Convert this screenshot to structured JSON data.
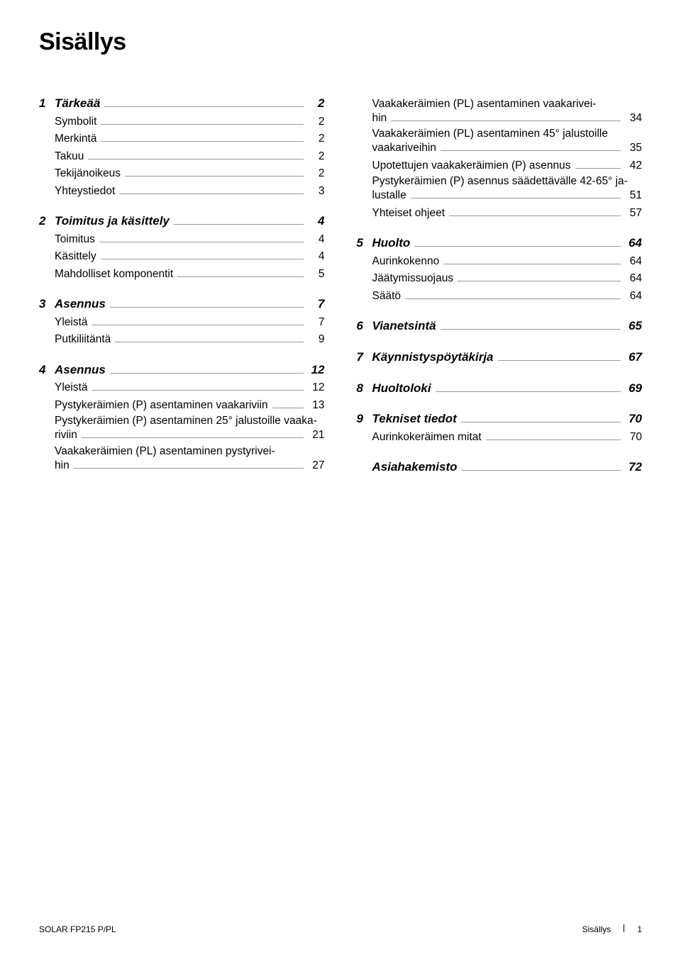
{
  "title": "Sisällys",
  "left": [
    {
      "type": "section",
      "num": "1",
      "label": "Tärkeää",
      "page": "2"
    },
    {
      "type": "sub",
      "label": "Symbolit",
      "page": "2"
    },
    {
      "type": "sub",
      "label": "Merkintä",
      "page": "2"
    },
    {
      "type": "sub",
      "label": "Takuu",
      "page": "2"
    },
    {
      "type": "sub",
      "label": "Tekijänoikeus",
      "page": "2"
    },
    {
      "type": "sub",
      "label": "Yhteystiedot",
      "page": "3"
    },
    {
      "type": "section",
      "num": "2",
      "label": "Toimitus ja käsittely",
      "page": "4"
    },
    {
      "type": "sub",
      "label": "Toimitus",
      "page": "4"
    },
    {
      "type": "sub",
      "label": "Käsittely",
      "page": "4"
    },
    {
      "type": "sub",
      "label": "Mahdolliset komponentit",
      "page": "5"
    },
    {
      "type": "section",
      "num": "3",
      "label": "Asennus",
      "page": "7"
    },
    {
      "type": "sub",
      "label": "Yleistä",
      "page": "7"
    },
    {
      "type": "sub",
      "label": "Putkiliitäntä",
      "page": "9"
    },
    {
      "type": "section",
      "num": "4",
      "label": "Asennus",
      "page": "12"
    },
    {
      "type": "sub",
      "label": "Yleistä",
      "page": "12"
    },
    {
      "type": "sub",
      "label": "Pystykeräimien (P) asentaminen vaakariviin",
      "page": "13"
    },
    {
      "type": "sub-wrap",
      "line1": "Pystykeräimien (P) asentaminen 25° jalustoille vaaka-",
      "line2": "riviin",
      "page": "21"
    },
    {
      "type": "sub-wrap",
      "line1": "Vaakakeräimien (PL) asentaminen pystyrivei-",
      "line2": "hin",
      "page": "27"
    }
  ],
  "right": [
    {
      "type": "sub-wrap",
      "line1": "Vaakakeräimien (PL) asentaminen vaakarivei-",
      "line2": "hin",
      "page": "34"
    },
    {
      "type": "sub-wrap",
      "line1": "Vaakakeräimien (PL) asentaminen 45° jalustoille",
      "line2": "vaakariveihin",
      "page": "35"
    },
    {
      "type": "sub",
      "label": "Upotettujen vaakakeräimien (P) asennus",
      "page": "42"
    },
    {
      "type": "sub-wrap",
      "line1": "Pystykeräimien (P) asennus säädettävälle 42-65° ja-",
      "line2": "lustalle",
      "page": "51"
    },
    {
      "type": "sub",
      "label": "Yhteiset ohjeet",
      "page": "57"
    },
    {
      "type": "section",
      "num": "5",
      "label": "Huolto",
      "page": "64"
    },
    {
      "type": "sub",
      "label": "Aurinkokenno",
      "page": "64"
    },
    {
      "type": "sub",
      "label": "Jäätymissuojaus",
      "page": "64"
    },
    {
      "type": "sub",
      "label": "Säätö",
      "page": "64"
    },
    {
      "type": "section",
      "num": "6",
      "label": "Vianetsintä",
      "page": "65"
    },
    {
      "type": "section",
      "num": "7",
      "label": "Käynnistyspöytäkirja",
      "page": "67"
    },
    {
      "type": "section",
      "num": "8",
      "label": "Huoltoloki",
      "page": "69"
    },
    {
      "type": "section",
      "num": "9",
      "label": "Tekniset tiedot",
      "page": "70"
    },
    {
      "type": "sub",
      "label": "Aurinkokeräimen mitat",
      "page": "70"
    },
    {
      "type": "section",
      "num": "",
      "label": "Asiahakemisto",
      "page": "72"
    }
  ],
  "footer": {
    "left": "SOLAR FP215 P/PL",
    "right_label": "Sisällys",
    "right_page": "1"
  }
}
